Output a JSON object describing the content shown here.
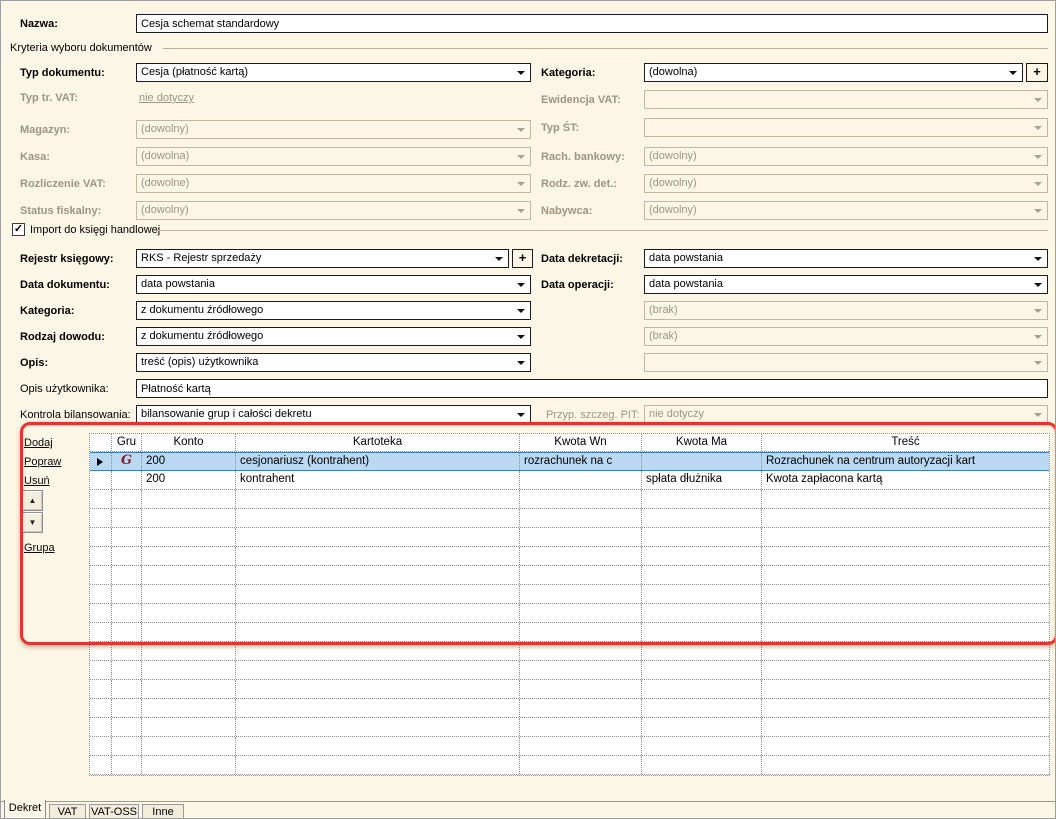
{
  "colors": {
    "form_bg": "#fbf6e5",
    "highlight_border": "#e63232",
    "selection_bg": "#bad8f2",
    "selection_border": "#3e7cb8",
    "group_marker": "#8c1a28",
    "disabled_text": "#9e9583"
  },
  "icons": {
    "dropdown_arrow": "chevron-down",
    "current_row": "right-triangle",
    "move_up": "▲",
    "move_down": "▼",
    "checkmark": "✓",
    "plus": "+",
    "group_marker": "G"
  },
  "form": {
    "nazwa": {
      "label": "Nazwa:",
      "value": "Cesja schemat standardowy"
    },
    "criteria": {
      "title": "Kryteria wyboru dokumentów",
      "left": [
        {
          "label": "Typ dokumentu:",
          "value": "Cesja (płatność kartą)"
        },
        {
          "label": "Typ tr. VAT:",
          "value": "nie dotyczy"
        },
        {
          "label": "Magazyn:",
          "value": "(dowolny)"
        },
        {
          "label": "Kasa:",
          "value": "(dowolna)"
        },
        {
          "label": "Rozliczenie VAT:",
          "value": "(dowolne)"
        },
        {
          "label": "Status fiskalny:",
          "value": "(dowolny)"
        }
      ],
      "right": [
        {
          "label": "Kategoria:",
          "value": "(dowolna)"
        },
        {
          "label": "Ewidencja VAT:",
          "value": ""
        },
        {
          "label": "Typ ŚT:",
          "value": ""
        },
        {
          "label": "Rach. bankowy:",
          "value": "(dowolny)"
        },
        {
          "label": "Rodz. zw. det.:",
          "value": "(dowolny)"
        },
        {
          "label": "Nabywca:",
          "value": "(dowolny)"
        }
      ]
    },
    "import": {
      "title": "Import do księgi handlowej",
      "checked": true,
      "left": [
        {
          "label": "Rejestr księgowy:",
          "value": "RKS - Rejestr sprzedaży"
        },
        {
          "label": "Data dokumentu:",
          "value": "data powstania"
        },
        {
          "label": "Kategoria:",
          "value": "z dokumentu źródłowego"
        },
        {
          "label": "Rodzaj dowodu:",
          "value": "z dokumentu źródłowego"
        },
        {
          "label": "Opis:",
          "value": "treść (opis) użytkownika"
        },
        {
          "label": "Opis użytkownika:",
          "value": "Płatność kartą"
        },
        {
          "label": "Kontrola bilansowania:",
          "value": "bilansowanie grup i całości dekretu"
        }
      ],
      "right": [
        {
          "label": "Data dekretacji:",
          "value": "data powstania"
        },
        {
          "label": "Data operacji:",
          "value": "data powstania"
        },
        {
          "label": "",
          "value": "(brak)"
        },
        {
          "label": "",
          "value": "(brak)"
        },
        {
          "label": "",
          "value": ""
        },
        {
          "label": "Przyp. szczeg. PIT:",
          "value": "nie dotyczy"
        }
      ]
    }
  },
  "actions": {
    "dodaj": "Dodaj",
    "popraw": "Popraw",
    "usun": "Usuń",
    "grupa": "Grupa"
  },
  "grid": {
    "columns": [
      "",
      "Gru",
      "Konto",
      "Kartoteka",
      "Kwota Wn",
      "Kwota Ma",
      "Treść"
    ],
    "rows": [
      {
        "gru": "G",
        "konto": "200",
        "kartoteka": "cesjonariusz (kontrahent)",
        "kwota_wn": "rozrachunek na c",
        "kwota_ma": "",
        "tresc": "Rozrachunek na centrum autoryzacji kart",
        "selected": true
      },
      {
        "gru": "",
        "konto": "200",
        "kartoteka": "kontrahent",
        "kwota_wn": "",
        "kwota_ma": "spłata dłużnika",
        "tresc": "Kwota zapłacona kartą",
        "selected": false
      }
    ]
  },
  "tabs": [
    {
      "label": "Dekret",
      "active": true
    },
    {
      "label": "VAT",
      "active": false
    },
    {
      "label": "VAT-OSS",
      "active": false
    },
    {
      "label": "Inne",
      "active": false
    }
  ]
}
